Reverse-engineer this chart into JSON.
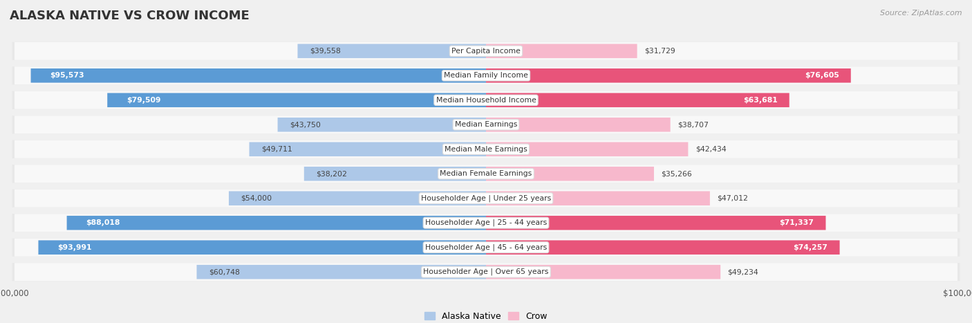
{
  "title": "ALASKA NATIVE VS CROW INCOME",
  "source": "Source: ZipAtlas.com",
  "max_value": 100000,
  "categories": [
    "Per Capita Income",
    "Median Family Income",
    "Median Household Income",
    "Median Earnings",
    "Median Male Earnings",
    "Median Female Earnings",
    "Householder Age | Under 25 years",
    "Householder Age | 25 - 44 years",
    "Householder Age | 45 - 64 years",
    "Householder Age | Over 65 years"
  ],
  "alaska_values": [
    39558,
    95573,
    79509,
    43750,
    49711,
    38202,
    54000,
    88018,
    93991,
    60748
  ],
  "crow_values": [
    31729,
    76605,
    63681,
    38707,
    42434,
    35266,
    47012,
    71337,
    74257,
    49234
  ],
  "alaska_color_light": "#adc8e8",
  "alaska_color_dark": "#5b9bd5",
  "crow_color_light": "#f7b8cc",
  "crow_color_dark": "#e8547a",
  "alaska_labels": [
    "$39,558",
    "$95,573",
    "$79,509",
    "$43,750",
    "$49,711",
    "$38,202",
    "$54,000",
    "$88,018",
    "$93,991",
    "$60,748"
  ],
  "crow_labels": [
    "$31,729",
    "$76,605",
    "$63,681",
    "$38,707",
    "$42,434",
    "$35,266",
    "$47,012",
    "$71,337",
    "$74,257",
    "$49,234"
  ],
  "alaska_dark_threshold": 63000,
  "crow_dark_threshold": 63000,
  "bg_color": "#f0f0f0",
  "row_bg": "#e8e8e8",
  "row_inner_bg": "#f8f8f8"
}
